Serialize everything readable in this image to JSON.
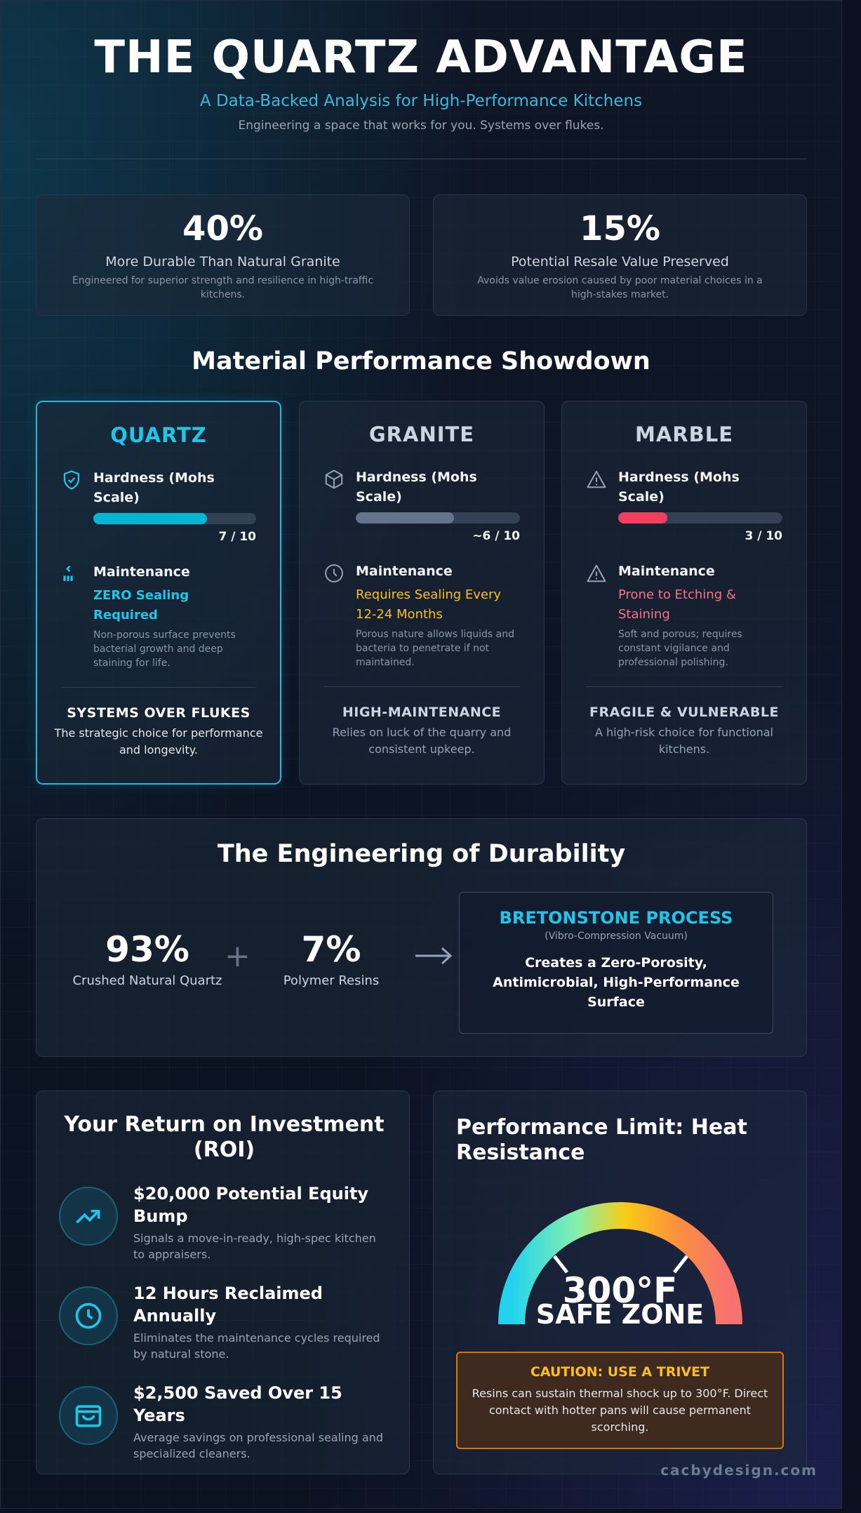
{
  "header": {
    "title": "THE QUARTZ ADVANTAGE",
    "subtitle": "A Data-Backed Analysis for High-Performance Kitchens",
    "tagline": "Engineering a space that works for you. Systems over flukes."
  },
  "stats": [
    {
      "value": "40%",
      "label": "More Durable Than Natural Granite",
      "desc": "Engineered for superior strength and resilience in high-traffic kitchens."
    },
    {
      "value": "15%",
      "label": "Potential Resale Value Preserved",
      "desc": "Avoids value erosion caused by poor material choices in a high-stakes market."
    }
  ],
  "showdown": {
    "heading": "Material Performance Showdown",
    "hardness_label": "Hardness (Mohs Scale)",
    "maintenance_label": "Maintenance",
    "materials": [
      {
        "name": "QUARTZ",
        "color": "#22c5e6",
        "hardness_fraction": 0.7,
        "hardness_text": "7 / 10",
        "bar_color": "#06b6d4",
        "maintenance": "ZERO Sealing Required",
        "maintenance_color": "#22c5e6",
        "maintenance_desc": "Non-porous surface prevents bacterial growth and deep staining for life.",
        "footer_title": "SYSTEMS OVER FLUKES",
        "footer_desc": "The strategic choice for performance and longevity.",
        "icon1": "shield-check-icon",
        "icon2": "sparkle-icon"
      },
      {
        "name": "GRANITE",
        "color": "#cbd5e1",
        "hardness_fraction": 0.6,
        "hardness_text": "~6 / 10",
        "bar_color": "#64748b",
        "maintenance": "Requires Sealing Every 12-24 Months",
        "maintenance_color": "#fbbf24",
        "maintenance_desc": "Porous nature allows liquids and bacteria to penetrate if not maintained.",
        "footer_title": "HIGH-MAINTENANCE",
        "footer_desc": "Relies on luck of the quarry and consistent upkeep.",
        "icon1": "cube-icon",
        "icon2": "clock-icon"
      },
      {
        "name": "MARBLE",
        "color": "#cbd5e1",
        "hardness_fraction": 0.3,
        "hardness_text": "3 / 10",
        "bar_color": "#f43f5e",
        "maintenance": "Prone to Etching & Staining",
        "maintenance_color": "#fb7185",
        "maintenance_desc": "Soft and porous; requires constant vigilance and professional polishing.",
        "footer_title": "FRAGILE & VULNERABLE",
        "footer_desc": "A high-risk choice for functional kitchens.",
        "icon1": "warning-icon",
        "icon2": "warning-icon"
      }
    ]
  },
  "engineering": {
    "heading": "The Engineering of Durability",
    "quartz_pct": "93%",
    "quartz_label": "Crushed Natural Quartz",
    "plus": "+",
    "resin_pct": "7%",
    "resin_label": "Polymer Resins",
    "process_title": "BRETONSTONE PROCESS",
    "process_sub": "(Vibro-Compression Vacuum)",
    "process_desc": "Creates a Zero-Porosity, Antimicrobial, High-Performance Surface"
  },
  "roi": {
    "heading": "Your Return on Investment (ROI)",
    "items": [
      {
        "title": "$20,000 Potential Equity Bump",
        "desc": "Signals a move-in-ready, high-spec kitchen to appraisers.",
        "icon": "trending-up-icon"
      },
      {
        "title": "12 Hours Reclaimed Annually",
        "desc": "Eliminates the maintenance cycles required by natural stone.",
        "icon": "clock-icon"
      },
      {
        "title": "$2,500 Saved Over 15 Years",
        "desc": "Average savings on professional sealing and specialized cleaners.",
        "icon": "wallet-icon"
      }
    ]
  },
  "heat": {
    "heading": "Performance Limit: Heat Resistance",
    "value": "300°F",
    "label": "SAFE ZONE",
    "caution_title": "CAUTION: USE A TRIVET",
    "caution_desc": "Resins can sustain thermal shock up to 300°F. Direct contact with hotter pans will cause permanent scorching."
  },
  "watermark": "cacbydesign.com"
}
